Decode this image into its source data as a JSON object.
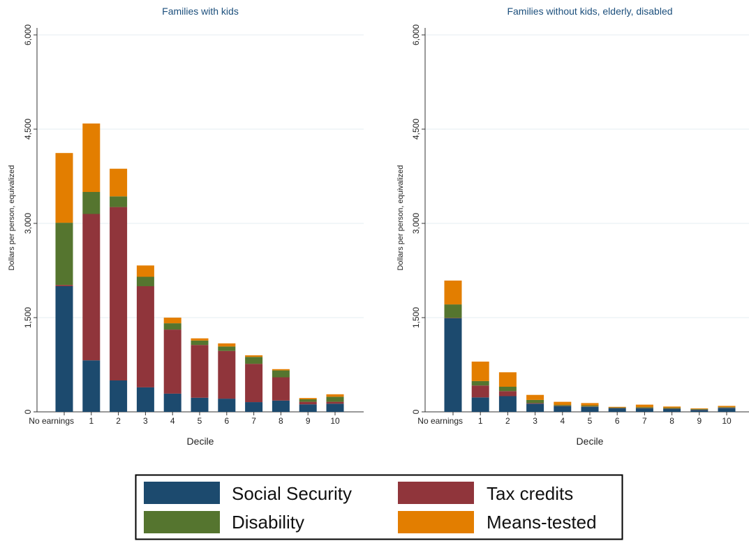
{
  "chart_data": [
    {
      "type": "bar",
      "stacked": true,
      "title": "Families with kids",
      "xlabel": "Decile",
      "ylabel": "Dollars per person, equivalized",
      "ylim": [
        0,
        6000
      ],
      "yticks": [
        "0",
        "1,500",
        "3,000",
        "4,500",
        "6,000"
      ],
      "tick_values": [
        0,
        1500,
        3000,
        4500,
        6000
      ],
      "grid": true,
      "categories": [
        "No earnings",
        "1",
        "2",
        "3",
        "4",
        "5",
        "6",
        "7",
        "8",
        "9",
        "10"
      ],
      "series": [
        {
          "name": "Social Security",
          "values": [
            2000,
            820,
            500,
            390,
            290,
            225,
            210,
            155,
            180,
            120,
            130
          ]
        },
        {
          "name": "Tax credits",
          "values": [
            20,
            2330,
            2760,
            1610,
            1020,
            840,
            760,
            610,
            370,
            40,
            30
          ]
        },
        {
          "name": "Disability",
          "values": [
            990,
            350,
            170,
            150,
            100,
            70,
            70,
            110,
            110,
            40,
            80
          ]
        },
        {
          "name": "Means-tested",
          "values": [
            1110,
            1090,
            440,
            180,
            90,
            35,
            50,
            25,
            20,
            20,
            40
          ]
        }
      ]
    },
    {
      "type": "bar",
      "stacked": true,
      "title": "Families without kids, elderly, disabled",
      "xlabel": "Decile",
      "ylabel": "Dollars per person, equivalized",
      "ylim": [
        0,
        6000
      ],
      "yticks": [
        "0",
        "1,500",
        "3,000",
        "4,500",
        "6,000"
      ],
      "tick_values": [
        0,
        1500,
        3000,
        4500,
        6000
      ],
      "grid": true,
      "categories": [
        "No earnings",
        "1",
        "2",
        "3",
        "4",
        "5",
        "6",
        "7",
        "8",
        "9",
        "10"
      ],
      "series": [
        {
          "name": "Social Security",
          "values": [
            1490,
            230,
            250,
            130,
            90,
            80,
            55,
            55,
            45,
            30,
            60
          ]
        },
        {
          "name": "Tax credits",
          "values": [
            5,
            190,
            80,
            10,
            5,
            5,
            5,
            5,
            5,
            5,
            5
          ]
        },
        {
          "name": "Disability",
          "values": [
            215,
            70,
            70,
            50,
            15,
            15,
            10,
            15,
            15,
            10,
            10
          ]
        },
        {
          "name": "Means-tested",
          "values": [
            380,
            310,
            230,
            80,
            50,
            40,
            10,
            40,
            20,
            10,
            20
          ]
        }
      ]
    }
  ],
  "legend": {
    "entries": [
      {
        "label": "Social Security",
        "color": "#1c4a6e"
      },
      {
        "label": "Tax credits",
        "color": "#90353b"
      },
      {
        "label": "Disability",
        "color": "#55752f"
      },
      {
        "label": "Means-tested",
        "color": "#e37e00"
      }
    ]
  }
}
